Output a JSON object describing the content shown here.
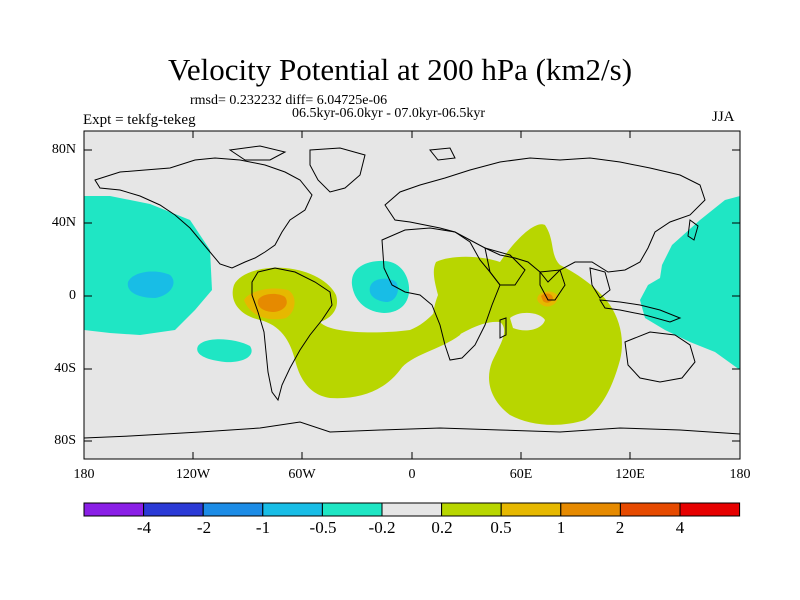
{
  "figure": {
    "title": "Velocity Potential at 200 hPa (km2/s)",
    "stats_line": "rmsd= 0.232232 diff= 6.04725e-06",
    "period_line": "06.5kyr-06.0kyr - 07.0kyr-06.5kyr",
    "experiment": "Expt = tekfg-tekeg",
    "season": "JJA"
  },
  "axes": {
    "lat_ticks": [
      "80N",
      "40N",
      "0",
      "40S",
      "80S"
    ],
    "lon_ticks": [
      "180",
      "120W",
      "60W",
      "0",
      "60E",
      "120E",
      "180"
    ]
  },
  "colorbar": {
    "colors": [
      "#8a1fe6",
      "#2b3ad6",
      "#1c8ce6",
      "#18bde6",
      "#1fe6c4",
      "#e6e6e6",
      "#b8d600",
      "#e6b800",
      "#e68a00",
      "#e64a00",
      "#e60000"
    ],
    "labels": [
      "-4",
      "-2",
      "-1",
      "-0.5",
      "-0.2",
      "0.2",
      "0.5",
      "1",
      "2",
      "4"
    ]
  },
  "map_colors": {
    "ocean_bg": "#e6e6e6",
    "neg_weak": "#1fe6c4",
    "neg_mid": "#18bde6",
    "pos_weak": "#b8d600",
    "pos_mid": "#e6b800",
    "pos_strong": "#e68a00"
  }
}
